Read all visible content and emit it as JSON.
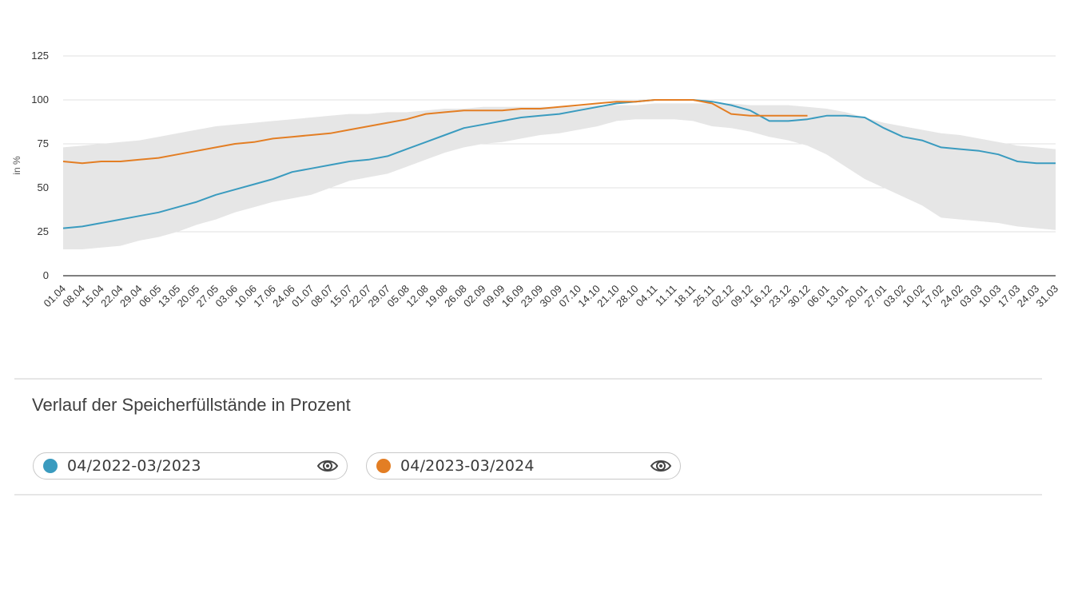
{
  "chart_data": {
    "type": "line",
    "ylabel": "in %",
    "ylim": [
      0,
      125
    ],
    "yticks": [
      0,
      25,
      50,
      75,
      100,
      125
    ],
    "x_tick_labels": [
      "01.04",
      "08.04",
      "15.04",
      "22.04",
      "29.04",
      "06.05",
      "13.05",
      "20.05",
      "27.05",
      "03.06",
      "10.06",
      "17.06",
      "24.06",
      "01.07",
      "08.07",
      "15.07",
      "22.07",
      "29.07",
      "05.08",
      "12.08",
      "19.08",
      "26.08",
      "02.09",
      "09.09",
      "16.09",
      "23.09",
      "30.09",
      "07.10",
      "14.10",
      "21.10",
      "28.10",
      "04.11",
      "11.11",
      "18.11",
      "25.11",
      "02.12",
      "09.12",
      "16.12",
      "23.12",
      "30.12",
      "06.01",
      "13.01",
      "20.01",
      "27.01",
      "03.02",
      "10.02",
      "17.02",
      "24.02",
      "03.03",
      "10.03",
      "17.03",
      "24.03",
      "31.03"
    ],
    "grid": "horizontal",
    "band": {
      "upper": [
        73,
        74,
        75,
        76,
        77,
        79,
        81,
        83,
        85,
        86,
        87,
        88,
        89,
        90,
        91,
        92,
        92,
        93,
        93,
        94,
        95,
        95,
        96,
        96,
        96,
        96,
        96,
        96,
        97,
        97,
        97,
        98,
        98,
        98,
        98,
        98,
        97,
        97,
        97,
        96,
        95,
        93,
        90,
        87,
        85,
        83,
        81,
        80,
        78,
        76,
        74,
        73,
        72
      ],
      "lower": [
        15,
        15,
        16,
        17,
        20,
        22,
        25,
        29,
        32,
        36,
        39,
        42,
        44,
        46,
        50,
        54,
        56,
        58,
        62,
        66,
        70,
        73,
        75,
        76,
        78,
        80,
        81,
        83,
        85,
        88,
        89,
        89,
        89,
        88,
        85,
        84,
        82,
        79,
        77,
        74,
        69,
        62,
        55,
        50,
        45,
        40,
        33,
        32,
        31,
        30,
        28,
        27,
        26
      ]
    },
    "series": [
      {
        "name": "04/2022-03/2023",
        "color": "#3a9bbf",
        "values": [
          27,
          28,
          30,
          32,
          34,
          36,
          39,
          42,
          46,
          49,
          52,
          55,
          59,
          61,
          63,
          65,
          66,
          68,
          72,
          76,
          80,
          84,
          86,
          88,
          90,
          91,
          92,
          94,
          96,
          98,
          99,
          100,
          100,
          100,
          99,
          97,
          94,
          88,
          88,
          89,
          91,
          91,
          90,
          84,
          79,
          77,
          73,
          72,
          71,
          69,
          65,
          64,
          64
        ]
      },
      {
        "name": "04/2023-03/2024",
        "color": "#e37e24",
        "values": [
          65,
          64,
          65,
          65,
          66,
          67,
          69,
          71,
          73,
          75,
          76,
          78,
          79,
          80,
          81,
          83,
          85,
          87,
          89,
          92,
          93,
          94,
          94,
          94,
          95,
          95,
          96,
          97,
          98,
          99,
          99,
          100,
          100,
          100,
          98,
          92,
          91,
          91,
          91,
          91
        ]
      }
    ]
  },
  "title": "Verlauf der Speicherfüllstände in Prozent",
  "legend": [
    {
      "label": "04/2022-03/2023",
      "color": "#3a9bbf",
      "icon": "eye-icon"
    },
    {
      "label": "04/2023-03/2024",
      "color": "#e37e24",
      "icon": "eye-icon"
    }
  ]
}
